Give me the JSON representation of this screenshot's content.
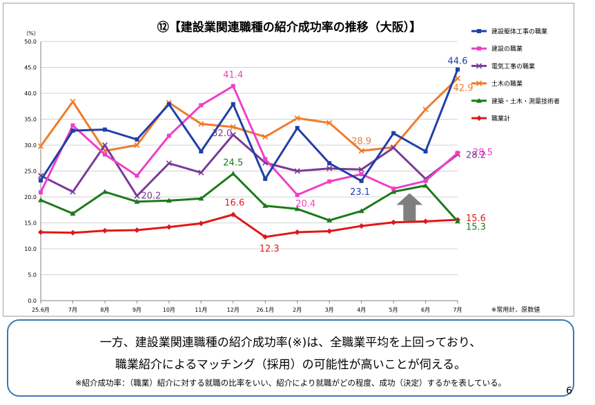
{
  "chart_data": {
    "type": "line",
    "title": "⑫【建設業関連職種の紹介成功率の推移（大阪）】",
    "ylabel_unit": "（%）",
    "ylim": [
      0,
      50
    ],
    "ytick_step": 5,
    "yticks": [
      "0.0",
      "5.0",
      "10.0",
      "15.0",
      "20.0",
      "25.0",
      "30.0",
      "35.0",
      "40.0",
      "45.0",
      "50.0"
    ],
    "categories": [
      "25.6月",
      "7月",
      "8月",
      "9月",
      "10月",
      "11月",
      "12月",
      "26.1月",
      "2月",
      "3月",
      "4月",
      "5月",
      "6月",
      "7月"
    ],
    "footnote": "※常用計、原数値",
    "grid": "horizontal",
    "legend_position": "right",
    "series": [
      {
        "name": "建設躯体工事の職業",
        "color": "#1f3fa8",
        "marker": "square",
        "values": [
          23.2,
          32.8,
          33.0,
          31.1,
          37.9,
          28.8,
          37.9,
          23.5,
          33.3,
          26.5,
          23.1,
          32.3,
          28.8,
          44.6
        ]
      },
      {
        "name": "建設の職業",
        "color": "#ef3fc8",
        "marker": "square",
        "values": [
          20.9,
          33.8,
          28.2,
          24.1,
          31.8,
          37.7,
          41.4,
          27.3,
          20.4,
          23.0,
          24.4,
          21.6,
          23.1,
          28.5
        ]
      },
      {
        "name": "電気工事の職業",
        "color": "#7a3a96",
        "marker": "x",
        "values": [
          24.1,
          21.0,
          30.0,
          20.2,
          26.5,
          24.7,
          32.0,
          26.6,
          25.0,
          25.5,
          25.3,
          29.5,
          23.5,
          28.2
        ]
      },
      {
        "name": "土木の職業",
        "color": "#f07a28",
        "marker": "x",
        "values": [
          29.8,
          38.4,
          28.9,
          30.0,
          38.2,
          34.1,
          33.5,
          31.6,
          35.2,
          34.3,
          28.9,
          29.6,
          36.9,
          42.9
        ]
      },
      {
        "name": "建築・土木・測量技術者",
        "color": "#1a7a1a",
        "marker": "triangle",
        "values": [
          19.4,
          16.8,
          21.0,
          19.1,
          19.3,
          19.7,
          24.5,
          18.3,
          17.7,
          15.5,
          17.3,
          21.0,
          22.2,
          15.3
        ]
      },
      {
        "name": "職業計",
        "color": "#e01818",
        "marker": "diamond",
        "values": [
          13.2,
          13.1,
          13.5,
          13.6,
          14.2,
          14.9,
          16.6,
          12.3,
          13.2,
          13.4,
          14.4,
          15.1,
          15.3,
          15.6
        ]
      }
    ],
    "data_labels": [
      {
        "series": 0,
        "index": 13,
        "text": "44.6",
        "color": "#1f3fa8"
      },
      {
        "series": 0,
        "index": 10,
        "text": "23.1",
        "color": "#1f3fa8"
      },
      {
        "series": 1,
        "index": 6,
        "text": "41.4",
        "color": "#ef3fc8"
      },
      {
        "series": 1,
        "index": 8,
        "text": "20.4",
        "color": "#ef3fc8"
      },
      {
        "series": 1,
        "index": 13,
        "text": "28.5",
        "color": "#ef3fc8"
      },
      {
        "series": 2,
        "index": 3,
        "text": "20.2",
        "color": "#7a3a96"
      },
      {
        "series": 2,
        "index": 6,
        "text": "32.0",
        "color": "#7a3a96"
      },
      {
        "series": 2,
        "index": 13,
        "text": "28.2",
        "color": "#7a3a96"
      },
      {
        "series": 3,
        "index": 10,
        "text": "28.9",
        "color": "#f07a28"
      },
      {
        "series": 3,
        "index": 13,
        "text": "42.9",
        "color": "#f07a28"
      },
      {
        "series": 4,
        "index": 6,
        "text": "24.5",
        "color": "#1a7a1a"
      },
      {
        "series": 4,
        "index": 13,
        "text": "15.3",
        "color": "#1a7a1a"
      },
      {
        "series": 5,
        "index": 6,
        "text": "16.6",
        "color": "#e01818"
      },
      {
        "series": 5,
        "index": 7,
        "text": "12.3",
        "color": "#e01818"
      },
      {
        "series": 5,
        "index": 13,
        "text": "15.6",
        "color": "#e01818"
      }
    ],
    "annotations": [
      {
        "type": "up-arrow",
        "index": 11.5,
        "y_base": 15.4,
        "color": "#7f7f7f"
      }
    ]
  },
  "note": {
    "line1": "一方、建設業関連職種の紹介成功率(※)は、全職業平均を上回っており、",
    "line2": "職業紹介によるマッチング（採用）の可能性が高いことが伺える。",
    "line3": "※紹介成功率：（職業）紹介に対する就職の比率をいい、紹介により就職がどの程度、成功（決定）するかを表している。"
  },
  "page_number": "6"
}
